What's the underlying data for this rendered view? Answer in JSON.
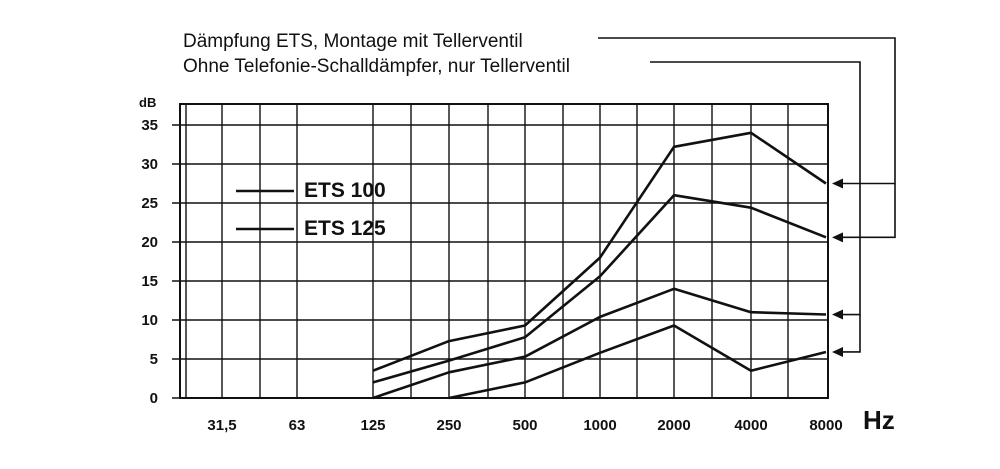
{
  "chart_data": {
    "type": "line",
    "annotations": [
      "Dämpfung ETS, Montage mit Tellerventil",
      "Ohne Telefonie-Schalldämpfer, nur Tellerventil"
    ],
    "ylabel": "dB",
    "xlabel": "Hz",
    "categories": [
      "31,5",
      "63",
      "125",
      "250",
      "500",
      "1000",
      "2000",
      "4000",
      "8000"
    ],
    "yticks": [
      0,
      5,
      10,
      15,
      20,
      25,
      30,
      35
    ],
    "ylim": [
      0,
      37
    ],
    "grid": true,
    "legend": [
      {
        "label": "ETS 100"
      },
      {
        "label": "ETS 125"
      }
    ],
    "series": [
      {
        "values": [
          null,
          null,
          3.5,
          7.3,
          9.3,
          18,
          32.2,
          34,
          27.5
        ]
      },
      {
        "values": [
          null,
          null,
          2,
          4.8,
          7.8,
          15.6,
          26,
          24.4,
          20.6
        ]
      },
      {
        "values": [
          null,
          null,
          0,
          3.3,
          5.3,
          10.4,
          14,
          11,
          10.7
        ]
      },
      {
        "values": [
          null,
          null,
          null,
          0,
          2,
          5.8,
          9.3,
          3.5,
          5.9
        ]
      }
    ]
  }
}
